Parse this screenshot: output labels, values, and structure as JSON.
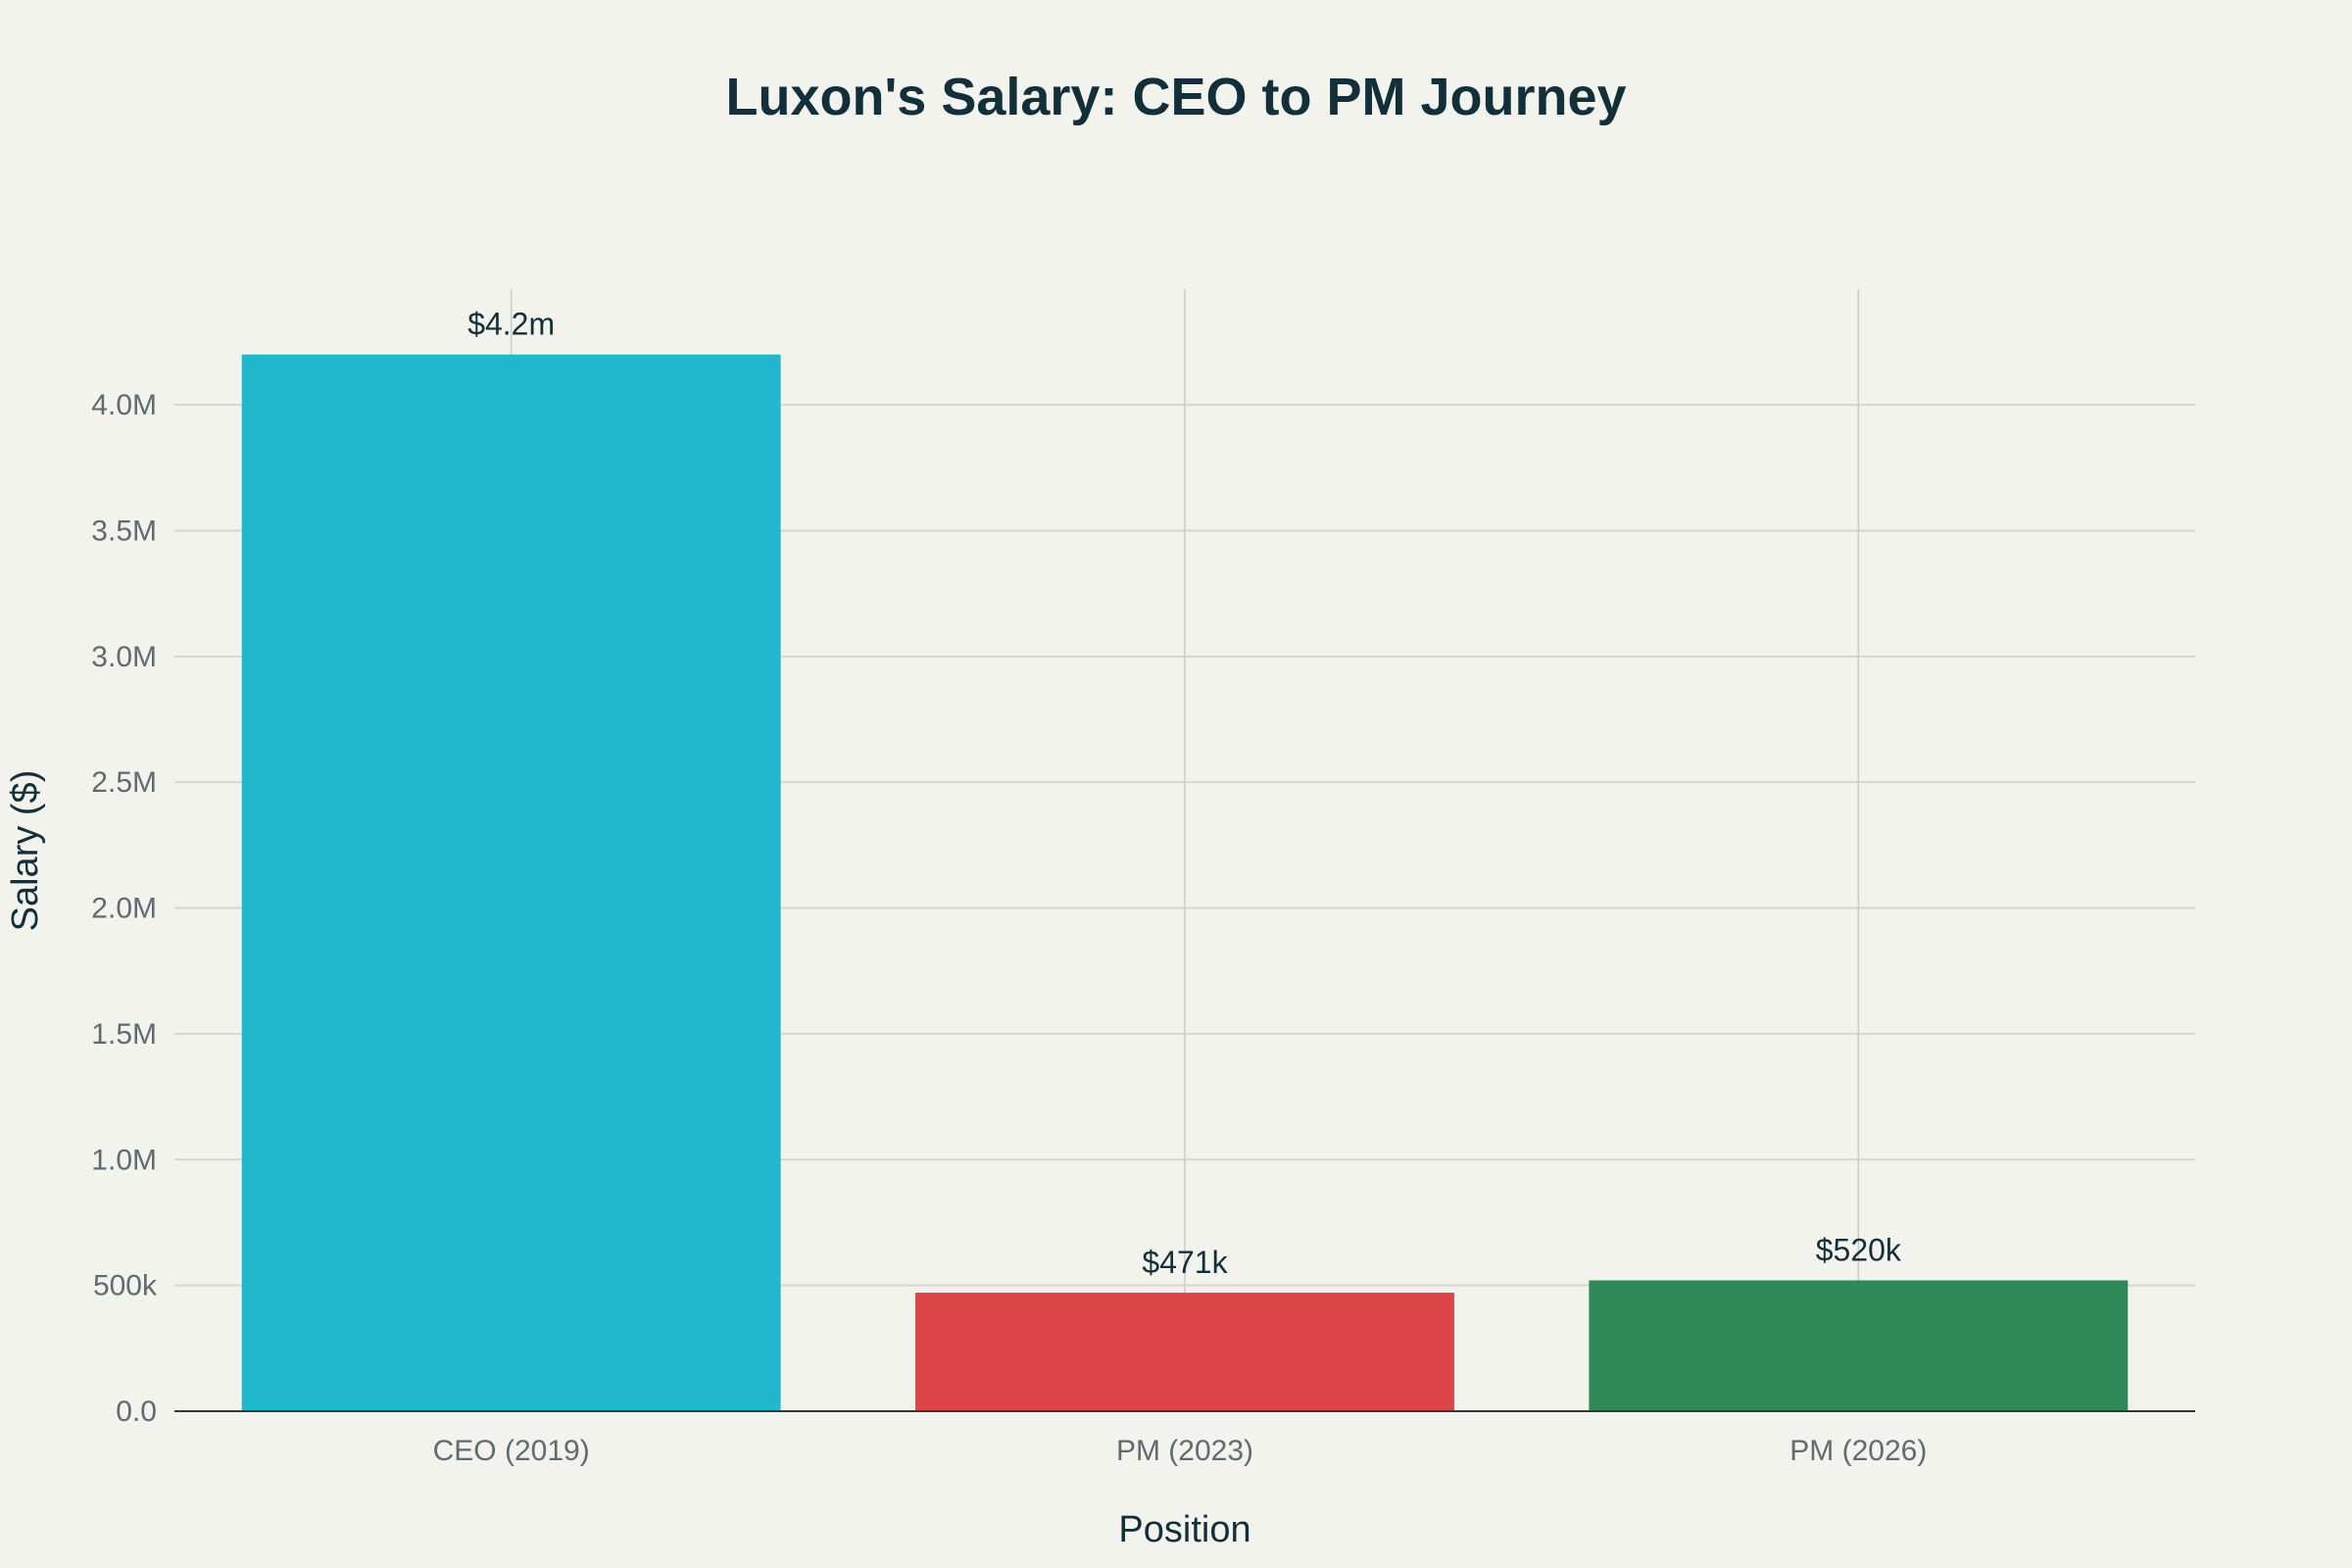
{
  "chart_data": {
    "type": "bar",
    "title": "Luxon's Salary: CEO to PM Journey",
    "xlabel": "Position",
    "ylabel": "Salary ($)",
    "categories": [
      "CEO (2019)",
      "PM (2023)",
      "PM (2026)"
    ],
    "values": [
      4200000,
      471000,
      520000
    ],
    "data_labels": [
      "$4.2m",
      "$471k",
      "$520k"
    ],
    "colors": [
      "#21b7cc",
      "#dc4548",
      "#2e8957"
    ],
    "ylim": [
      0,
      4460000
    ],
    "yticks": [
      0,
      500000,
      1000000,
      1500000,
      2000000,
      2500000,
      3000000,
      3500000,
      4000000
    ],
    "ytick_labels": [
      "0.0",
      "500k",
      "1.0M",
      "1.5M",
      "2.0M",
      "2.5M",
      "3.0M",
      "3.5M",
      "4.0M"
    ],
    "grid": true,
    "legend": "none"
  }
}
